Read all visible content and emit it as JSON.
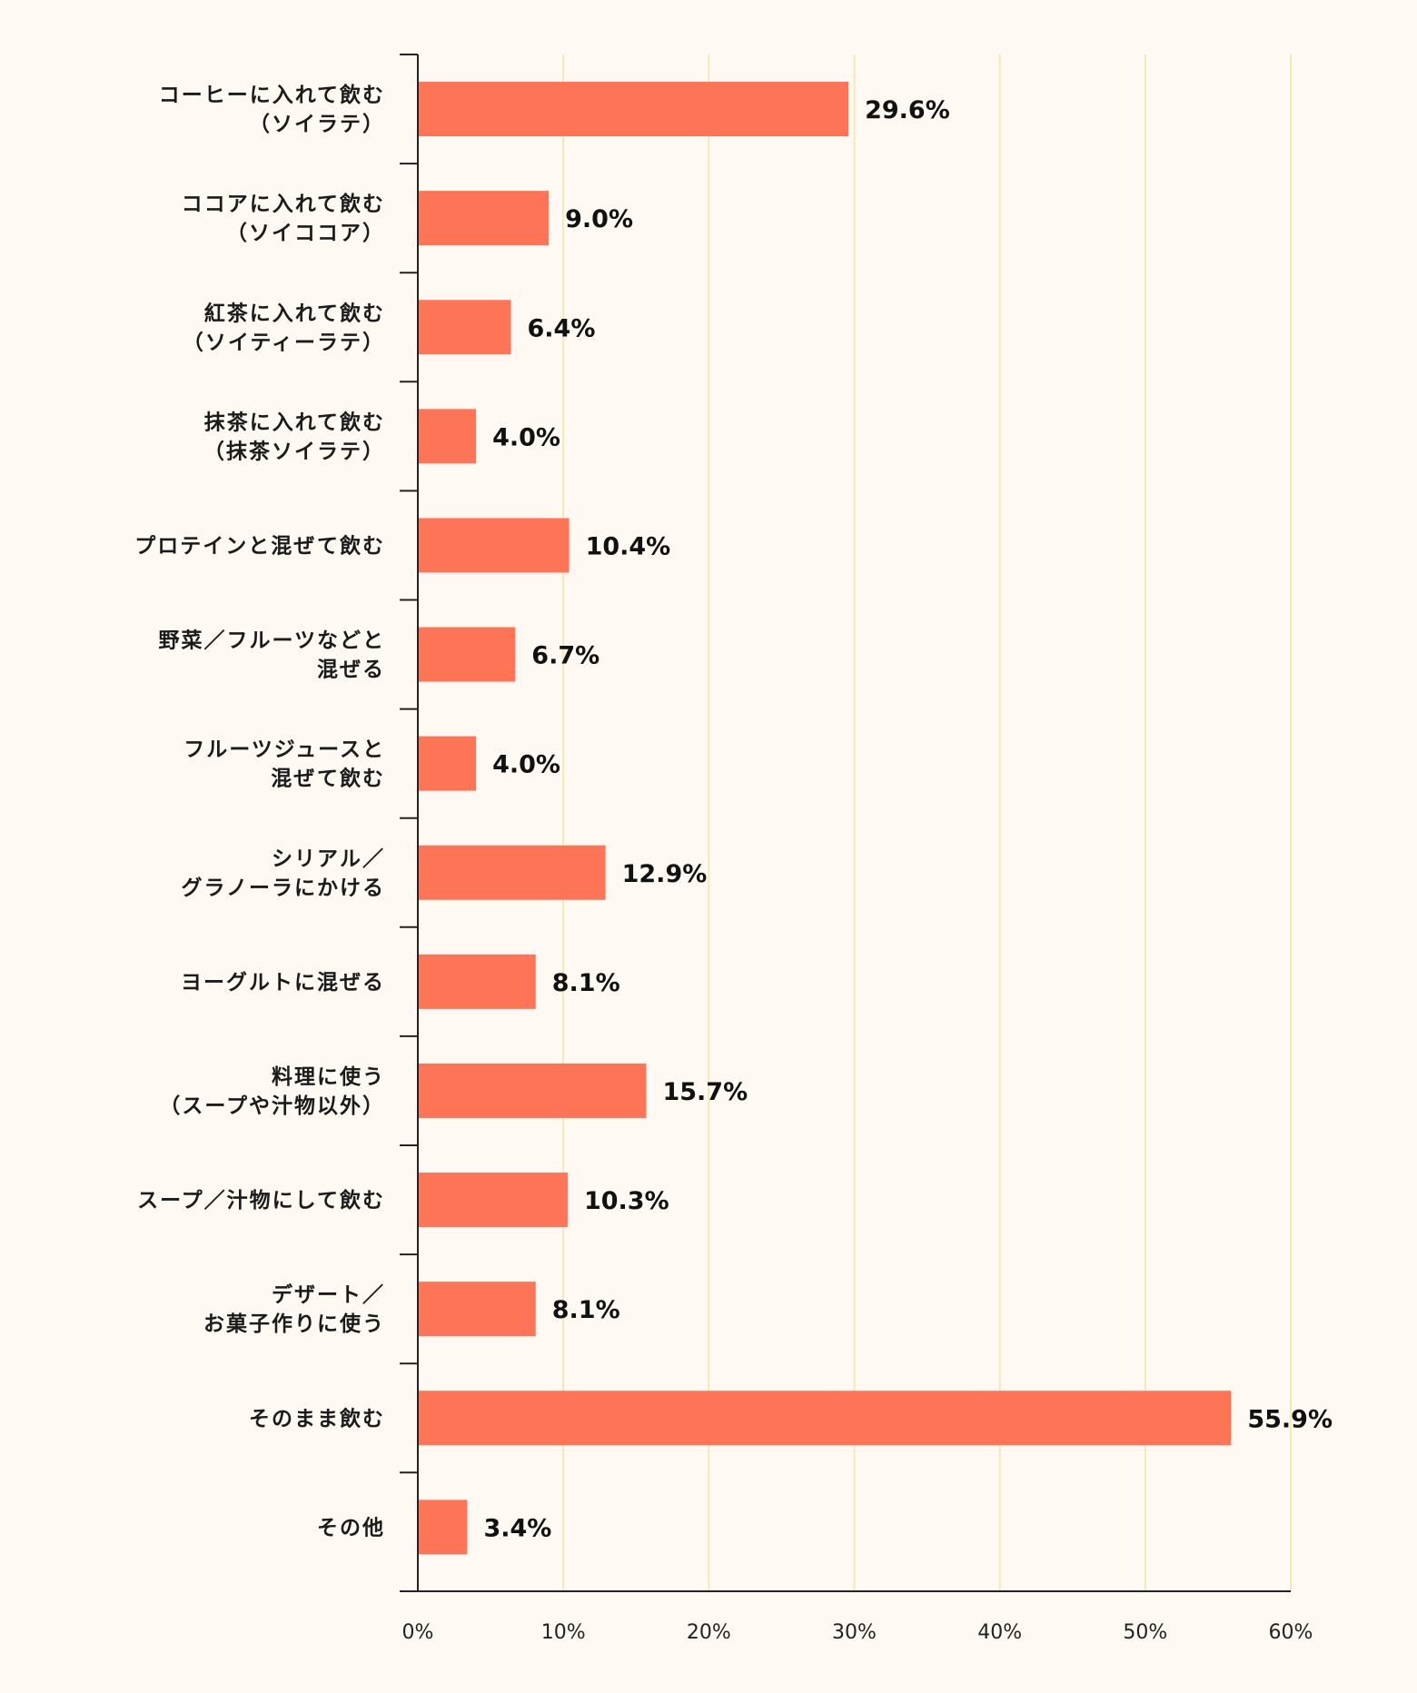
{
  "chart_data": {
    "type": "bar",
    "orientation": "horizontal",
    "categories": [
      [
        "コーヒーに入れて飲む",
        "（ソイラテ）"
      ],
      [
        "ココアに入れて飲む",
        "（ソイココア）"
      ],
      [
        "紅茶に入れて飲む",
        "（ソイティーラテ）"
      ],
      [
        "抹茶に入れて飲む",
        "（抹茶ソイラテ）"
      ],
      [
        "プロテインと混ぜて飲む"
      ],
      [
        "野菜／フルーツなどと",
        "混ぜる"
      ],
      [
        "フルーツジュースと",
        "混ぜて飲む"
      ],
      [
        "シリアル／",
        "グラノーラにかける"
      ],
      [
        "ヨーグルトに混ぜる"
      ],
      [
        "料理に使う",
        "（スープや汁物以外）"
      ],
      [
        "スープ／汁物にして飲む"
      ],
      [
        "デザート／",
        "お菓子作りに使う"
      ],
      [
        "そのまま飲む"
      ],
      [
        "その他"
      ]
    ],
    "values": [
      29.6,
      9.0,
      6.4,
      4.0,
      10.4,
      6.7,
      4.0,
      12.9,
      8.1,
      15.7,
      10.3,
      8.1,
      55.9,
      3.4
    ],
    "value_labels": [
      "29.6%",
      "9.0%",
      "6.4%",
      "4.0%",
      "10.4%",
      "6.7%",
      "4.0%",
      "12.9%",
      "8.1%",
      "15.7%",
      "10.3%",
      "8.1%",
      "55.9%",
      "3.4%"
    ],
    "xlim": [
      0,
      60
    ],
    "xticks": [
      0,
      10,
      20,
      30,
      40,
      50,
      60
    ],
    "xtick_labels": [
      "0%",
      "10%",
      "20%",
      "30%",
      "40%",
      "50%",
      "60%"
    ],
    "grid": true,
    "legend": "none",
    "colors": {
      "bar": "#fe7456",
      "grid": "#f6e7b6",
      "axis": "#222222",
      "background": "#fefaf3"
    }
  }
}
